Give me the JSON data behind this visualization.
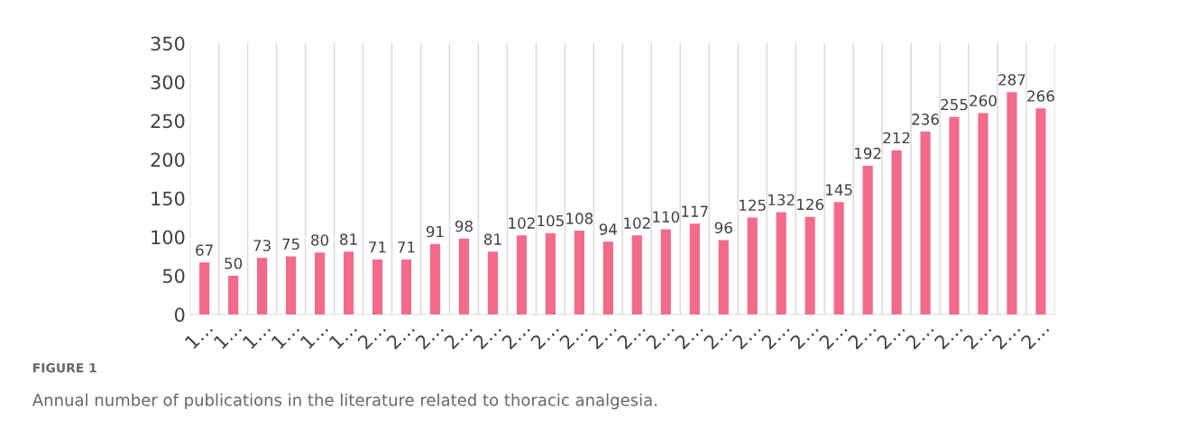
{
  "chart_data": {
    "type": "bar",
    "categories": [
      "1…",
      "1…",
      "1…",
      "1…",
      "1…",
      "1…",
      "2…",
      "2…",
      "2…",
      "2…",
      "2…",
      "2…",
      "2…",
      "2…",
      "2…",
      "2…",
      "2…",
      "2…",
      "2…",
      "2…",
      "2…",
      "2…",
      "2…",
      "2…",
      "2…",
      "2…",
      "2…",
      "2…",
      "2…",
      "2…"
    ],
    "values": [
      67,
      50,
      73,
      75,
      80,
      81,
      71,
      71,
      91,
      98,
      81,
      102,
      105,
      108,
      94,
      102,
      110,
      117,
      96,
      125,
      132,
      126,
      145,
      192,
      212,
      236,
      255,
      260,
      287,
      266
    ],
    "color": "#f26b8a",
    "ylim": [
      0,
      350
    ],
    "yticks": [
      0,
      50,
      100,
      150,
      200,
      250,
      300,
      350
    ],
    "grid": "x",
    "data_labels": true,
    "annotations": [
      "FIGURE 1",
      "Annual number of publications in the literature related to thoracic analgesia."
    ]
  }
}
